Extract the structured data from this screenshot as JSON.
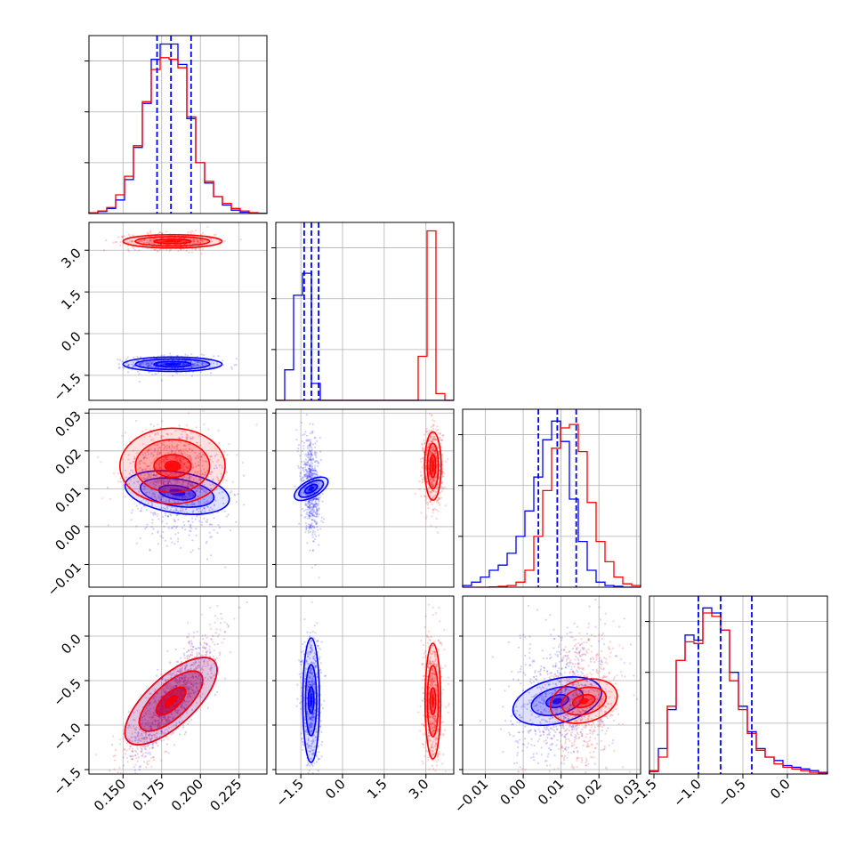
{
  "chart_data": {
    "type": "corner",
    "series": [
      {
        "color": "#0000ff",
        "quantile_lines": [
          [
            0.172,
            0.181,
            0.194
          ],
          [
            -1.38,
            -1.12,
            -0.86
          ],
          [
            0.004,
            0.009,
            0.014
          ],
          [
            -1.0,
            -0.75,
            -0.4
          ]
        ]
      },
      {
        "color": "#ff0000"
      }
    ],
    "parameters": [
      {
        "range": [
          0.128,
          0.243
        ],
        "ticks": [
          0.15,
          0.175,
          0.2,
          0.225
        ],
        "tick_labels": [
          "0.150",
          "0.175",
          "0.200",
          "0.225"
        ]
      },
      {
        "range": [
          -2.4,
          4.0
        ],
        "ticks": [
          -1.5,
          0.0,
          1.5,
          3.0
        ],
        "tick_labels": [
          "−1.5",
          "0.0",
          "1.5",
          "3.0"
        ]
      },
      {
        "range": [
          -0.016,
          0.031
        ],
        "ticks": [
          -0.01,
          0.0,
          0.01,
          0.02,
          0.03
        ],
        "tick_labels": [
          "−0.01",
          "0.00",
          "0.01",
          "0.02",
          "0.03"
        ]
      },
      {
        "range": [
          -1.55,
          0.45
        ],
        "ticks": [
          -1.5,
          -1.0,
          -0.5,
          0.0
        ],
        "tick_labels": [
          "−1.5",
          "−1.0",
          "−0.5",
          "0.0"
        ]
      }
    ],
    "histograms": [
      {
        "bins": [
          0.128,
          0.243,
          20
        ],
        "blue": [
          0.004,
          0.012,
          0.03,
          0.08,
          0.2,
          0.39,
          0.65,
          0.91,
          1.0,
          1.0,
          0.88,
          0.56,
          0.3,
          0.18,
          0.1,
          0.05,
          0.02,
          0.008,
          0.003,
          0.001
        ],
        "red": [
          0.004,
          0.015,
          0.035,
          0.11,
          0.22,
          0.4,
          0.66,
          0.85,
          0.92,
          0.91,
          0.86,
          0.57,
          0.3,
          0.19,
          0.1,
          0.06,
          0.03,
          0.015,
          0.005,
          0.001
        ]
      },
      {
        "bins": [
          -2.4,
          4.0,
          20
        ],
        "blue": [
          0,
          0.18,
          0.62,
          0.75,
          0.1,
          0,
          0,
          0,
          0,
          0,
          0,
          0,
          0,
          0,
          0,
          0,
          0,
          0,
          0,
          0
        ],
        "red": [
          0,
          0,
          0,
          0,
          0,
          0,
          0,
          0,
          0,
          0,
          0,
          0,
          0,
          0,
          0,
          0,
          0.26,
          1.0,
          0.04,
          0
        ],
        "ymax": 1.05
      },
      {
        "bins": [
          -0.016,
          0.031,
          20
        ],
        "blue": [
          0.01,
          0.03,
          0.06,
          0.1,
          0.13,
          0.2,
          0.3,
          0.45,
          0.65,
          0.87,
          0.98,
          0.86,
          0.52,
          0.27,
          0.1,
          0.03,
          0.01,
          0.005,
          0,
          0
        ],
        "red": [
          0,
          0,
          0,
          0.002,
          0.005,
          0.01,
          0.03,
          0.1,
          0.3,
          0.57,
          0.82,
          0.94,
          0.96,
          0.8,
          0.5,
          0.27,
          0.15,
          0.06,
          0.02,
          0.01
        ],
        "ymax": 1.05
      },
      {
        "bins": [
          -1.55,
          0.45,
          20
        ],
        "blue": [
          0.015,
          0.15,
          0.38,
          0.67,
          0.82,
          0.79,
          0.98,
          0.95,
          0.85,
          0.6,
          0.4,
          0.25,
          0.15,
          0.1,
          0.08,
          0.05,
          0.04,
          0.03,
          0.02,
          0.01
        ],
        "red": [
          0.02,
          0.1,
          0.4,
          0.67,
          0.78,
          0.77,
          0.95,
          0.93,
          0.85,
          0.55,
          0.38,
          0.24,
          0.14,
          0.1,
          0.06,
          0.04,
          0.03,
          0.02,
          0.01,
          0.005
        ],
        "ymax": 1.05
      }
    ],
    "clusters": [
      {
        "i": 1,
        "j": 0,
        "color": "blue",
        "cx": 0.182,
        "cy": -1.1,
        "sx": 0.011,
        "sy": 0.12,
        "rho": 0,
        "levels": [
          [
            0.012,
            0.1
          ],
          [
            0.024,
            0.19
          ],
          [
            0.032,
            0.26
          ]
        ]
      },
      {
        "i": 1,
        "j": 0,
        "color": "red",
        "cx": 0.182,
        "cy": 3.32,
        "sx": 0.011,
        "sy": 0.12,
        "rho": 0,
        "levels": [
          [
            0.012,
            0.08
          ],
          [
            0.024,
            0.17
          ],
          [
            0.032,
            0.24
          ]
        ]
      },
      {
        "i": 2,
        "j": 0,
        "color": "blue",
        "cx": 0.185,
        "cy": 0.009,
        "sx": 0.012,
        "sy": 0.005,
        "rho": -0.15,
        "levels": [
          [
            0.012,
            0.004
          ],
          [
            0.024,
            0.008
          ],
          [
            0.034,
            0.012
          ]
        ]
      },
      {
        "i": 2,
        "j": 0,
        "color": "red",
        "cx": 0.182,
        "cy": 0.016,
        "sx": 0.012,
        "sy": 0.004,
        "rho": 0,
        "levels": [
          [
            0.012,
            0.003
          ],
          [
            0.024,
            0.007
          ],
          [
            0.034,
            0.01
          ]
        ]
      },
      {
        "i": 2,
        "j": 1,
        "color": "blue",
        "cx": -1.13,
        "cy": 0.01,
        "sx": 0.14,
        "sy": 0.005,
        "rho": -0.3,
        "levels": [
          [
            0.12,
            0.004
          ],
          [
            0.22,
            0.008
          ],
          [
            0.3,
            0.011
          ]
        ]
      },
      {
        "i": 2,
        "j": 1,
        "color": "red",
        "cx": 3.25,
        "cy": 0.016,
        "sx": 0.14,
        "sy": 0.004,
        "rho": 0,
        "levels": [
          [
            0.1,
            0.003
          ],
          [
            0.2,
            0.006
          ],
          [
            0.3,
            0.009
          ]
        ]
      },
      {
        "i": 3,
        "j": 0,
        "color": "blue",
        "cx": 0.181,
        "cy": -0.73,
        "sx": 0.012,
        "sy": 0.3,
        "rho": 0.85,
        "levels": [
          [
            0.012,
            0.2
          ],
          [
            0.026,
            0.42
          ],
          [
            0.038,
            0.6
          ]
        ]
      },
      {
        "i": 3,
        "j": 0,
        "color": "red",
        "cx": 0.181,
        "cy": -0.73,
        "sx": 0.012,
        "sy": 0.3,
        "rho": 0.85,
        "levels": [
          [
            0.012,
            0.2
          ],
          [
            0.026,
            0.42
          ],
          [
            0.038,
            0.6
          ]
        ]
      },
      {
        "i": 3,
        "j": 1,
        "color": "blue",
        "cx": -1.13,
        "cy": -0.72,
        "sx": 0.14,
        "sy": 0.3,
        "rho": 0,
        "levels": [
          [
            0.1,
            0.15
          ],
          [
            0.2,
            0.4
          ],
          [
            0.3,
            0.7
          ]
        ]
      },
      {
        "i": 3,
        "j": 1,
        "color": "red",
        "cx": 3.25,
        "cy": -0.73,
        "sx": 0.14,
        "sy": 0.3,
        "rho": 0,
        "levels": [
          [
            0.1,
            0.15
          ],
          [
            0.2,
            0.4
          ],
          [
            0.28,
            0.65
          ]
        ]
      },
      {
        "i": 3,
        "j": 2,
        "color": "blue",
        "cx": 0.009,
        "cy": -0.73,
        "sx": 0.005,
        "sy": 0.3,
        "rho": 0.2,
        "levels": [
          [
            0.003,
            0.15
          ],
          [
            0.007,
            0.33
          ],
          [
            0.012,
            0.55
          ]
        ]
      },
      {
        "i": 3,
        "j": 2,
        "color": "red",
        "cx": 0.016,
        "cy": -0.73,
        "sx": 0.004,
        "sy": 0.3,
        "rho": 0.15,
        "levels": [
          [
            0.003,
            0.15
          ],
          [
            0.006,
            0.33
          ],
          [
            0.009,
            0.53
          ]
        ]
      }
    ]
  }
}
